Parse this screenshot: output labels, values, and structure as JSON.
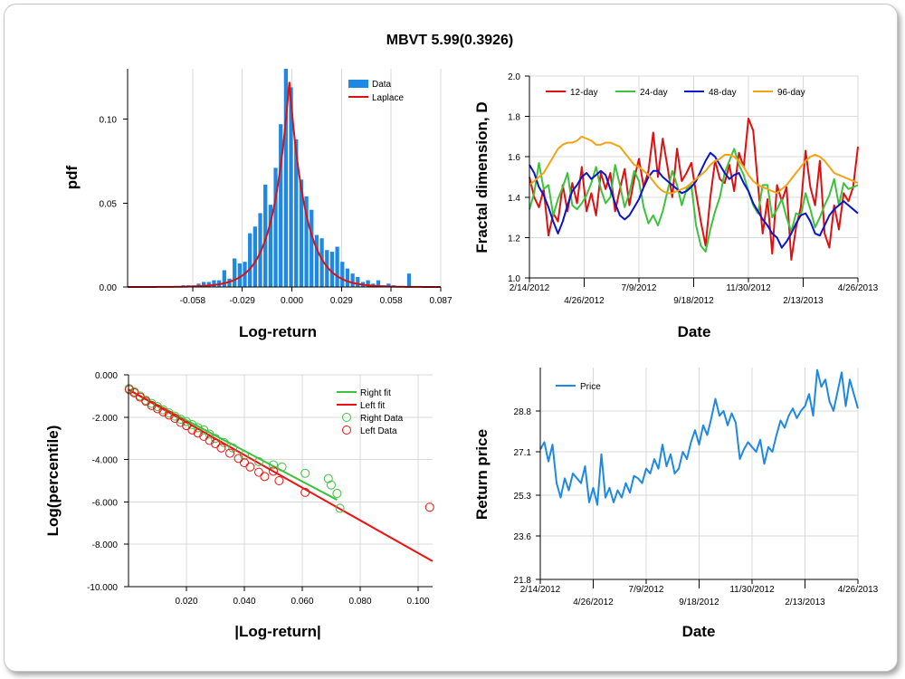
{
  "title": "MBVT 5.99(0.3926)",
  "chart_data": [
    {
      "type": "bar",
      "panel": "pdf-histogram",
      "xlabel": "Log-return",
      "ylabel": "pdf",
      "xticks": [
        "-0.058",
        "-0.029",
        "0.000",
        "0.029",
        "0.058",
        "0.087"
      ],
      "yticks": [
        "0.00",
        "0.05",
        "0.10"
      ],
      "xlim": [
        -0.096,
        0.087
      ],
      "ylim": [
        0,
        0.13
      ],
      "legend": [
        "Data",
        "Laplace"
      ],
      "legend_position": "top-right",
      "colors": {
        "Data": "#1e88e5",
        "Laplace": "#dd1111"
      },
      "bins": {
        "x": [
          -0.0635,
          -0.0605,
          -0.0575,
          -0.0545,
          -0.0515,
          -0.0485,
          -0.0455,
          -0.0425,
          -0.0395,
          -0.0365,
          -0.0335,
          -0.0305,
          -0.0275,
          -0.0245,
          -0.0215,
          -0.0185,
          -0.0155,
          -0.0125,
          -0.0095,
          -0.0065,
          -0.0035,
          -0.0005,
          0.0025,
          0.0055,
          0.0085,
          0.0115,
          0.0145,
          0.0175,
          0.0205,
          0.0235,
          0.0265,
          0.0295,
          0.0325,
          0.0355,
          0.0385,
          0.0415,
          0.0445,
          0.0475,
          0.0505,
          0.0535,
          0.0565,
          0.0595,
          0.0625,
          0.0655,
          0.0685
        ],
        "values": [
          0.001,
          0.001,
          0.001,
          0.002,
          0.003,
          0.003,
          0.004,
          0.004,
          0.01,
          0.005,
          0.017,
          0.014,
          0.015,
          0.032,
          0.036,
          0.044,
          0.061,
          0.049,
          0.071,
          0.097,
          0.13,
          0.119,
          0.088,
          0.064,
          0.054,
          0.046,
          0.031,
          0.029,
          0.022,
          0.021,
          0.024,
          0.015,
          0.011,
          0.008,
          0.006,
          0.003,
          0.004,
          0.002,
          0.004,
          0.001,
          0.002,
          0.001,
          0.0,
          0.0,
          0.008
        ]
      },
      "laplace": {
        "loc": -0.0015,
        "scale": 0.0095
      }
    },
    {
      "type": "line",
      "panel": "fractal-dimension",
      "xlabel": "Date",
      "ylabel": "Fractal dimension, D",
      "xticks_top": [
        "2/14/2012",
        "7/9/2012",
        "11/30/2012",
        "4/26/2013"
      ],
      "xticks_bottom": [
        "4/26/2012",
        "9/18/2012",
        "2/13/2013"
      ],
      "yticks": [
        "1.0",
        "1.2",
        "1.4",
        "1.6",
        "1.8",
        "2.0"
      ],
      "ylim": [
        1.0,
        2.0
      ],
      "legend_position": "top",
      "series": [
        {
          "name": "12-day",
          "color": "#dd1111",
          "values": [
            1.5,
            1.4,
            1.35,
            1.44,
            1.21,
            1.32,
            1.28,
            1.46,
            1.33,
            1.47,
            1.37,
            1.55,
            1.33,
            1.42,
            1.31,
            1.52,
            1.44,
            1.52,
            1.33,
            1.44,
            1.54,
            1.36,
            1.49,
            1.59,
            1.45,
            1.53,
            1.72,
            1.5,
            1.69,
            1.55,
            1.4,
            1.64,
            1.48,
            1.52,
            1.57,
            1.42,
            1.28,
            1.16,
            1.4,
            1.58,
            1.49,
            1.47,
            1.56,
            1.43,
            1.62,
            1.55,
            1.79,
            1.73,
            1.46,
            1.22,
            1.39,
            1.12,
            1.46,
            1.38,
            1.45,
            1.09,
            1.25,
            1.35,
            1.63,
            1.45,
            1.36,
            1.58,
            1.22,
            1.15,
            1.36,
            1.24,
            1.42,
            1.38,
            1.45,
            1.65
          ]
        },
        {
          "name": "24-day",
          "color": "#3ec23e",
          "values": [
            1.34,
            1.42,
            1.57,
            1.44,
            1.46,
            1.31,
            1.39,
            1.45,
            1.52,
            1.36,
            1.34,
            1.37,
            1.41,
            1.47,
            1.55,
            1.44,
            1.37,
            1.4,
            1.56,
            1.46,
            1.35,
            1.42,
            1.53,
            1.48,
            1.35,
            1.27,
            1.31,
            1.26,
            1.33,
            1.43,
            1.53,
            1.46,
            1.36,
            1.44,
            1.46,
            1.26,
            1.16,
            1.13,
            1.24,
            1.33,
            1.4,
            1.52,
            1.58,
            1.64,
            1.56,
            1.51,
            1.43,
            1.36,
            1.32,
            1.46,
            1.46,
            1.3,
            1.34,
            1.39,
            1.3,
            1.23,
            1.32,
            1.31,
            1.42,
            1.34,
            1.25,
            1.3,
            1.36,
            1.41,
            1.49,
            1.36,
            1.47,
            1.44,
            1.45,
            1.46
          ]
        },
        {
          "name": "48-day",
          "color": "#0a14cc",
          "values": [
            1.56,
            1.52,
            1.45,
            1.41,
            1.35,
            1.28,
            1.22,
            1.28,
            1.36,
            1.43,
            1.46,
            1.5,
            1.52,
            1.49,
            1.51,
            1.53,
            1.51,
            1.44,
            1.37,
            1.31,
            1.29,
            1.31,
            1.35,
            1.39,
            1.45,
            1.5,
            1.53,
            1.53,
            1.5,
            1.48,
            1.46,
            1.44,
            1.42,
            1.43,
            1.45,
            1.48,
            1.53,
            1.58,
            1.62,
            1.6,
            1.56,
            1.52,
            1.49,
            1.51,
            1.52,
            1.47,
            1.43,
            1.37,
            1.33,
            1.29,
            1.26,
            1.22,
            1.2,
            1.15,
            1.18,
            1.22,
            1.27,
            1.31,
            1.32,
            1.28,
            1.22,
            1.21,
            1.26,
            1.31,
            1.34,
            1.36,
            1.38,
            1.36,
            1.34,
            1.32
          ]
        },
        {
          "name": "96-day",
          "color": "#f5a314",
          "values": [
            1.46,
            1.48,
            1.5,
            1.52,
            1.56,
            1.6,
            1.64,
            1.66,
            1.67,
            1.67,
            1.68,
            1.7,
            1.69,
            1.68,
            1.66,
            1.66,
            1.67,
            1.67,
            1.66,
            1.65,
            1.62,
            1.59,
            1.56,
            1.55,
            1.53,
            1.51,
            1.48,
            1.45,
            1.43,
            1.42,
            1.42,
            1.43,
            1.44,
            1.45,
            1.47,
            1.49,
            1.51,
            1.53,
            1.56,
            1.58,
            1.59,
            1.61,
            1.61,
            1.6,
            1.58,
            1.55,
            1.51,
            1.48,
            1.46,
            1.45,
            1.44,
            1.43,
            1.42,
            1.44,
            1.46,
            1.49,
            1.52,
            1.55,
            1.58,
            1.6,
            1.61,
            1.6,
            1.58,
            1.55,
            1.52,
            1.51,
            1.5,
            1.49,
            1.48,
            1.47
          ]
        }
      ]
    },
    {
      "type": "scatter",
      "panel": "tail-fit",
      "xlabel": "|Log-return|",
      "ylabel": "Log(percentile)",
      "xticks": [
        "0.020",
        "0.040",
        "0.060",
        "0.080",
        "0.100"
      ],
      "yticks": [
        "0.000",
        "-2.000",
        "-4.000",
        "-6.000",
        "-8.000",
        "-10.000"
      ],
      "xlim": [
        0.0,
        0.105
      ],
      "ylim": [
        -10,
        0
      ],
      "legend": [
        "Right fit",
        "Left fit",
        "Right Data",
        "Left Data"
      ],
      "legend_position": "top-right",
      "colors": {
        "Right": "#3ec23e",
        "Left": "#ee1111"
      },
      "right_fit": {
        "x": [
          0.0,
          0.072
        ],
        "y": [
          -0.7,
          -5.9
        ]
      },
      "left_fit": {
        "x": [
          0.0,
          0.105
        ],
        "y": [
          -0.7,
          -8.8
        ]
      },
      "right_data": {
        "x": [
          0.0002,
          0.002,
          0.004,
          0.006,
          0.008,
          0.01,
          0.012,
          0.014,
          0.016,
          0.018,
          0.02,
          0.022,
          0.024,
          0.026,
          0.028,
          0.03,
          0.033,
          0.036,
          0.04,
          0.045,
          0.05,
          0.053,
          0.061,
          0.069,
          0.07,
          0.072,
          0.073
        ],
        "y": [
          -0.65,
          -0.8,
          -1.0,
          -1.2,
          -1.35,
          -1.5,
          -1.65,
          -1.8,
          -1.95,
          -2.1,
          -2.2,
          -2.35,
          -2.5,
          -2.6,
          -2.8,
          -3.0,
          -3.2,
          -3.45,
          -3.8,
          -4.1,
          -4.25,
          -4.35,
          -4.65,
          -4.9,
          -5.2,
          -5.6,
          -6.3
        ]
      },
      "left_data": {
        "x": [
          0.0003,
          0.002,
          0.004,
          0.006,
          0.008,
          0.01,
          0.012,
          0.014,
          0.016,
          0.018,
          0.02,
          0.022,
          0.024,
          0.026,
          0.028,
          0.03,
          0.032,
          0.035,
          0.038,
          0.04,
          0.042,
          0.045,
          0.047,
          0.05,
          0.052,
          0.061,
          0.104
        ],
        "y": [
          -0.7,
          -0.85,
          -1.05,
          -1.25,
          -1.45,
          -1.6,
          -1.75,
          -1.9,
          -2.05,
          -2.25,
          -2.4,
          -2.6,
          -2.75,
          -2.9,
          -3.1,
          -3.25,
          -3.45,
          -3.7,
          -3.95,
          -4.15,
          -4.35,
          -4.6,
          -4.8,
          -4.55,
          -5.0,
          -5.55,
          -6.25
        ]
      }
    },
    {
      "type": "line",
      "panel": "price",
      "xlabel": "Date",
      "ylabel": "Return price",
      "xticks_top": [
        "2/14/2012",
        "7/9/2012",
        "11/30/2012",
        "4/26/2013"
      ],
      "xticks_bottom": [
        "4/26/2012",
        "9/18/2012",
        "2/13/2013"
      ],
      "yticks": [
        "21.8",
        "23.6",
        "25.3",
        "27.1",
        "28.8"
      ],
      "ylim": [
        21.8,
        30.6
      ],
      "legend_position": "top-left",
      "series": [
        {
          "name": "Price",
          "color": "#1e88e5",
          "values": [
            27.2,
            27.5,
            26.7,
            27.4,
            25.8,
            25.2,
            26.0,
            25.5,
            26.2,
            26.0,
            25.8,
            26.5,
            25.0,
            25.6,
            24.9,
            27.0,
            25.2,
            25.6,
            25.0,
            25.5,
            25.2,
            25.8,
            25.4,
            26.1,
            26.0,
            25.8,
            26.4,
            26.2,
            26.8,
            26.4,
            27.4,
            26.5,
            27.0,
            26.2,
            26.4,
            27.1,
            26.8,
            27.5,
            28.0,
            27.4,
            28.2,
            27.8,
            28.5,
            29.3,
            28.6,
            28.8,
            28.2,
            28.7,
            28.3,
            26.8,
            27.2,
            27.5,
            27.3,
            27.1,
            27.6,
            26.6,
            27.3,
            27.1,
            27.8,
            28.4,
            28.1,
            28.6,
            28.9,
            28.5,
            28.8,
            29.0,
            29.5,
            28.6,
            30.5,
            29.8,
            30.1,
            29.2,
            28.8,
            29.6,
            30.4,
            29.0,
            30.1,
            29.5,
            28.9
          ]
        }
      ]
    }
  ]
}
